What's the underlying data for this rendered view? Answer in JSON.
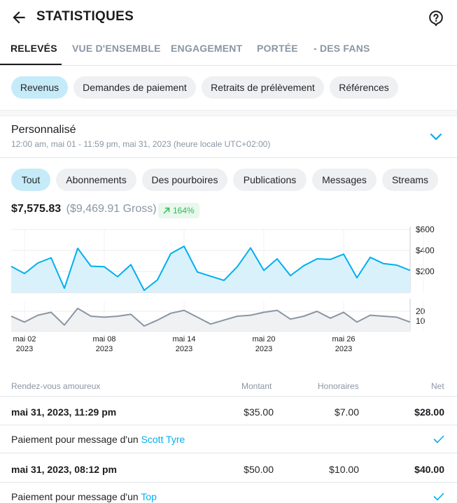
{
  "header": {
    "title": "STATISTIQUES",
    "back_icon": "arrow-left-icon",
    "help_icon": "question-bubble-icon"
  },
  "tabs": [
    {
      "label": "RELEVÉS",
      "active": true
    },
    {
      "label": "VUE D'ENSEMBLE",
      "active": false
    },
    {
      "label": "ENGAGEMENT",
      "active": false
    },
    {
      "label": "PORTÉE",
      "active": false
    },
    {
      "label": "- DES FANS",
      "active": false
    }
  ],
  "category_chips": [
    {
      "label": "Revenus",
      "active": true
    },
    {
      "label": "Demandes de paiement",
      "active": false
    },
    {
      "label": "Retraits de prélèvement",
      "active": false
    },
    {
      "label": "Références",
      "active": false
    }
  ],
  "period": {
    "title": "Personnalisé",
    "range": "12:00 am, mai 01 - 11:59 pm, mai 31, 2023 (heure locale UTC+02:00)"
  },
  "filter_chips": [
    {
      "label": "Tout",
      "active": true
    },
    {
      "label": "Abonnements",
      "active": false
    },
    {
      "label": "Des pourboires",
      "active": false
    },
    {
      "label": "Publications",
      "active": false
    },
    {
      "label": "Messages",
      "active": false
    },
    {
      "label": "Streams",
      "active": false
    }
  ],
  "totals": {
    "net": "$7,575.83",
    "gross": "($9,469.91 Gross)",
    "growth": "164%"
  },
  "colors": {
    "accent": "#00aff0",
    "active_chip": "#c6ebf8",
    "area_fill": "#d9f1fb",
    "secondary_line": "#8a96a3",
    "growth_green": "#2fbc56"
  },
  "chart_data": [
    {
      "type": "area",
      "x": [
        "mai 01",
        "mai 02",
        "mai 03",
        "mai 04",
        "mai 05",
        "mai 06",
        "mai 07",
        "mai 08",
        "mai 09",
        "mai 10",
        "mai 11",
        "mai 12",
        "mai 13",
        "mai 14",
        "mai 15",
        "mai 16",
        "mai 17",
        "mai 18",
        "mai 19",
        "mai 20",
        "mai 21",
        "mai 22",
        "mai 23",
        "mai 24",
        "mai 25",
        "mai 26",
        "mai 27",
        "mai 28",
        "mai 29",
        "mai 30",
        "mai 31"
      ],
      "values": [
        248,
        180,
        280,
        330,
        40,
        420,
        250,
        245,
        150,
        265,
        20,
        120,
        370,
        440,
        195,
        155,
        115,
        245,
        425,
        210,
        320,
        160,
        255,
        320,
        315,
        365,
        140,
        335,
        275,
        260,
        210
      ],
      "yticks": [
        "$600",
        "$400",
        "$200"
      ],
      "ylim": [
        0,
        600
      ],
      "grid": true
    },
    {
      "type": "area",
      "x": [
        "mai 01",
        "mai 02",
        "mai 03",
        "mai 04",
        "mai 05",
        "mai 06",
        "mai 07",
        "mai 08",
        "mai 09",
        "mai 10",
        "mai 11",
        "mai 12",
        "mai 13",
        "mai 14",
        "mai 15",
        "mai 16",
        "mai 17",
        "mai 18",
        "mai 19",
        "mai 20",
        "mai 21",
        "mai 22",
        "mai 23",
        "mai 24",
        "mai 25",
        "mai 26",
        "mai 27",
        "mai 28",
        "mai 29",
        "mai 30",
        "mai 31"
      ],
      "values": [
        15,
        9,
        16,
        19,
        6,
        23,
        15,
        14,
        15,
        17,
        5,
        11,
        18,
        21,
        14,
        7,
        11,
        15,
        16,
        19,
        21,
        12,
        15,
        20,
        13,
        19,
        9,
        16,
        15,
        14,
        9
      ],
      "yticks": [
        "20",
        "10"
      ],
      "ylim": [
        0,
        30
      ],
      "grid": true
    }
  ],
  "x_ticks": [
    {
      "day": "mai 02",
      "year": "2023"
    },
    {
      "day": "mai 08",
      "year": "2023"
    },
    {
      "day": "mai 14",
      "year": "2023"
    },
    {
      "day": "mai 20",
      "year": "2023"
    },
    {
      "day": "mai 26",
      "year": "2023"
    }
  ],
  "table": {
    "headers": {
      "label": "Rendez-vous amoureux",
      "amount": "Montant",
      "fee": "Honoraires",
      "net": "Net"
    },
    "rows": [
      {
        "date": "mai 31, 2023, 11:29 pm",
        "amount": "$35.00",
        "fee": "$7.00",
        "net": "$28.00",
        "desc": "Paiement pour message d'un",
        "user": "Scott Tyre"
      },
      {
        "date": "mai 31, 2023, 08:12 pm",
        "amount": "$50.00",
        "fee": "$10.00",
        "net": "$40.00",
        "desc": "Paiement pour message d'un",
        "user": "Top"
      }
    ]
  }
}
